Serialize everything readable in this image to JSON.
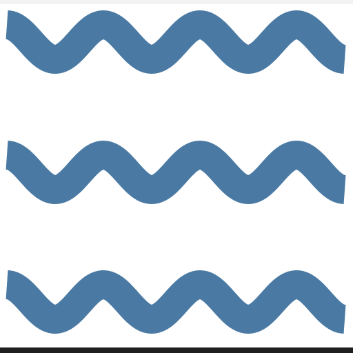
{
  "icon": {
    "name": "water-waves-icon",
    "wave_count": 3,
    "cycles_per_wave": 3.5
  },
  "colors": {
    "wave": "#4a7aa3",
    "background": "#ffffff",
    "top_edge": "#f2f2f2",
    "bottom_edge": "#1f1f1f"
  }
}
